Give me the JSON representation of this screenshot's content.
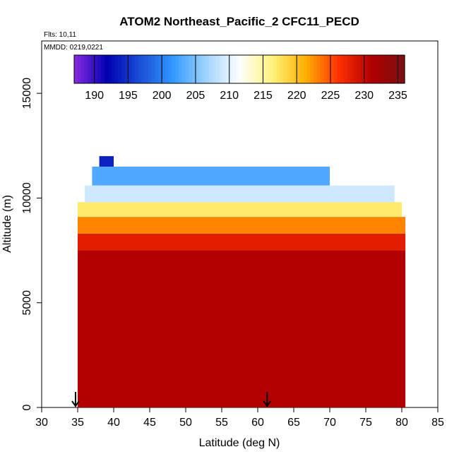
{
  "chart_data": {
    "type": "heatmap",
    "title": "ATOM2 Northeast_Pacific_2 CFC11_PECD",
    "annotations": [
      "Flts: 10,11",
      "MMDD: 0219,0221"
    ],
    "xlabel": "Latitude (deg N)",
    "ylabel": "Altitude (m)",
    "xlim": [
      30,
      85
    ],
    "ylim": [
      0,
      17500
    ],
    "x_ticks": [
      30,
      35,
      40,
      45,
      50,
      55,
      60,
      65,
      70,
      75,
      80,
      85
    ],
    "y_ticks": [
      0,
      5000,
      10000,
      15000
    ],
    "grid": false,
    "colorbar": {
      "position": "top",
      "range": [
        187,
        236
      ],
      "ticks": [
        190,
        195,
        200,
        205,
        210,
        215,
        220,
        225,
        230,
        235
      ],
      "colors": [
        "#8a2be2",
        "#0000b0",
        "#1a4fd6",
        "#3399ff",
        "#9fd4ff",
        "#ffffff",
        "#fff27a",
        "#ffb000",
        "#ff3000",
        "#b00000",
        "#7a1010"
      ]
    },
    "arrows_at_latitude": [
      34.7,
      61.3
    ],
    "data_extent": {
      "lat_range": [
        35,
        80.5
      ],
      "alt_range": [
        0,
        12000
      ]
    },
    "value_regions": [
      {
        "alt_range": [
          0,
          7500
        ],
        "lat_range": [
          35,
          80.5
        ],
        "value": 231
      },
      {
        "alt_range": [
          7500,
          8300
        ],
        "lat_range": [
          35,
          80.5
        ],
        "value": 228
      },
      {
        "alt_range": [
          8300,
          9100
        ],
        "lat_range": [
          35,
          80.5
        ],
        "value": 223
      },
      {
        "alt_range": [
          9100,
          9800
        ],
        "lat_range": [
          35,
          80
        ],
        "value": 217
      },
      {
        "alt_range": [
          9800,
          10600
        ],
        "lat_range": [
          36,
          79
        ],
        "value": 209
      },
      {
        "alt_range": [
          10600,
          11500
        ],
        "lat_range": [
          37,
          70
        ],
        "value": 203
      },
      {
        "alt_range": [
          11500,
          12000
        ],
        "lat_range": [
          38,
          40
        ],
        "value": 194
      }
    ]
  }
}
